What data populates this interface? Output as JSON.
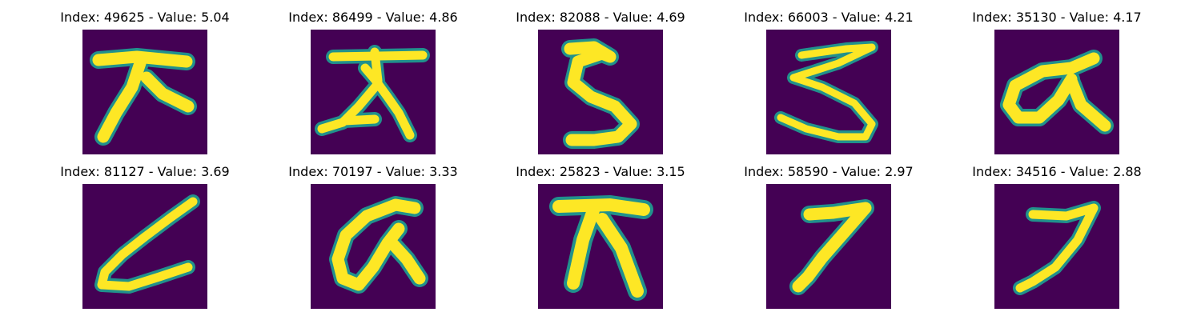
{
  "colors": {
    "background": "#440154",
    "stroke": "#fde725",
    "edge": "#21918c"
  },
  "colormap": "viridis",
  "axes_visible": false,
  "panels": [
    {
      "title": "Index: 49625 - Value: 5.04",
      "glyph": "handwritten-stroke"
    },
    {
      "title": "Index: 86499 - Value: 4.86",
      "glyph": "handwritten-stroke"
    },
    {
      "title": "Index: 82088 - Value: 4.69",
      "glyph": "handwritten-5"
    },
    {
      "title": "Index: 66003 - Value: 4.21",
      "glyph": "handwritten-5"
    },
    {
      "title": "Index: 35130 - Value: 4.17",
      "glyph": "handwritten-alpha"
    },
    {
      "title": "Index: 81127 - Value: 3.69",
      "glyph": "handwritten-L"
    },
    {
      "title": "Index: 70197 - Value: 3.33",
      "glyph": "handwritten-alpha"
    },
    {
      "title": "Index: 25823 - Value: 3.15",
      "glyph": "handwritten-stroke"
    },
    {
      "title": "Index: 58590 - Value: 2.97",
      "glyph": "handwritten-7"
    },
    {
      "title": "Index: 34516 - Value: 2.88",
      "glyph": "handwritten-7"
    }
  ]
}
